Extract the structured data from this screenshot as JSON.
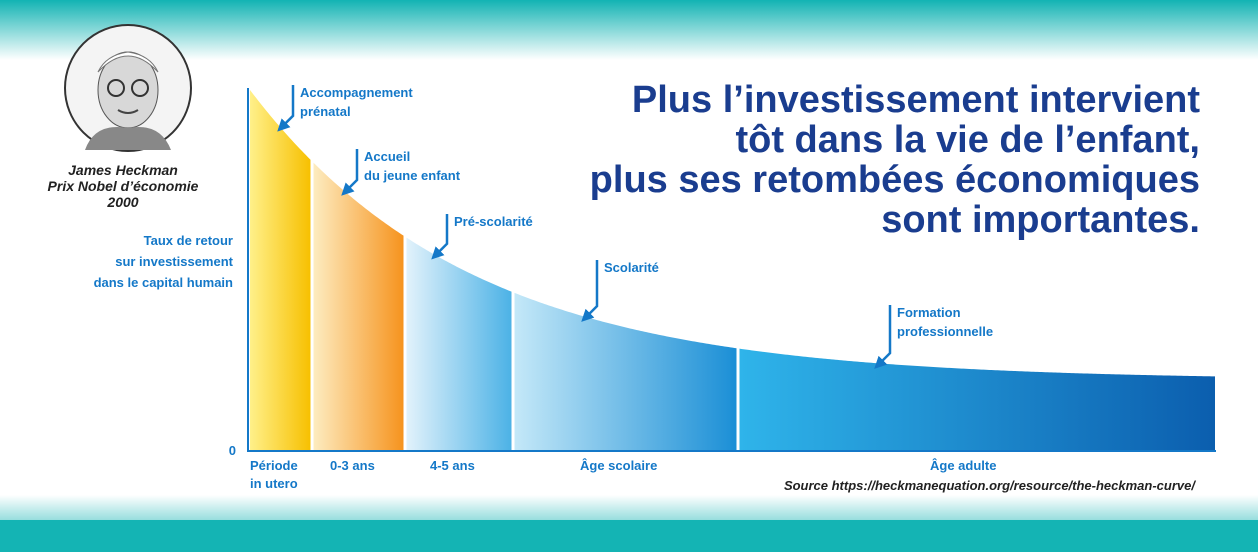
{
  "portrait": {
    "name": "James Heckman",
    "prize": "Prix Nobel d’économie",
    "year": "2000"
  },
  "y_axis_label": [
    "Taux de retour",
    "sur investissement",
    "dans le capital humain"
  ],
  "zero_label": "0",
  "title": [
    "Plus l’investissement intervient",
    "tôt dans la vie de l’enfant,",
    "plus ses retombées économiques",
    "sont importantes."
  ],
  "stages": [
    {
      "label": [
        "Période",
        "in utero"
      ],
      "annotation": [
        "Accompagnement",
        "prénatal"
      ]
    },
    {
      "label": [
        "0-3 ans"
      ],
      "annotation": [
        "Accueil",
        "du jeune enfant"
      ]
    },
    {
      "label": [
        "4-5 ans"
      ],
      "annotation": [
        "Pré-scolarité"
      ]
    },
    {
      "label": [
        "Âge scolaire"
      ],
      "annotation": [
        "Scolarité"
      ]
    },
    {
      "label": [
        "Âge adulte"
      ],
      "annotation": [
        "Formation",
        "professionnelle"
      ]
    }
  ],
  "source": "Source https://heckmanequation.org/resource/the-heckman-curve/"
}
